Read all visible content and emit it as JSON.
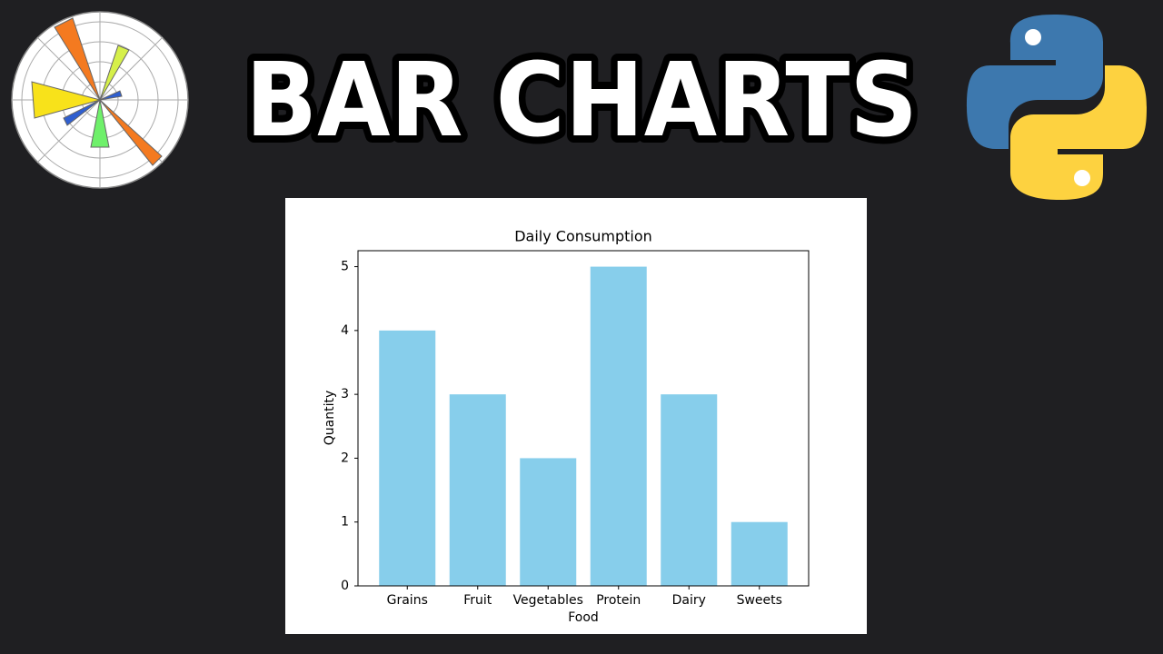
{
  "header": {
    "title": "BAR CHARTS"
  },
  "chart_data": {
    "type": "bar",
    "title": "Daily Consumption",
    "x_label": "Food",
    "y_label": "Quantity",
    "categories": [
      "Grains",
      "Fruit",
      "Vegetables",
      "Protein",
      "Dairy",
      "Sweets"
    ],
    "values": [
      4,
      3,
      2,
      5,
      3,
      1
    ],
    "color": "#87ceeb",
    "ylim": [
      0,
      5.25
    ],
    "yticks": [
      0,
      1,
      2,
      3,
      4,
      5
    ],
    "grid": false
  }
}
